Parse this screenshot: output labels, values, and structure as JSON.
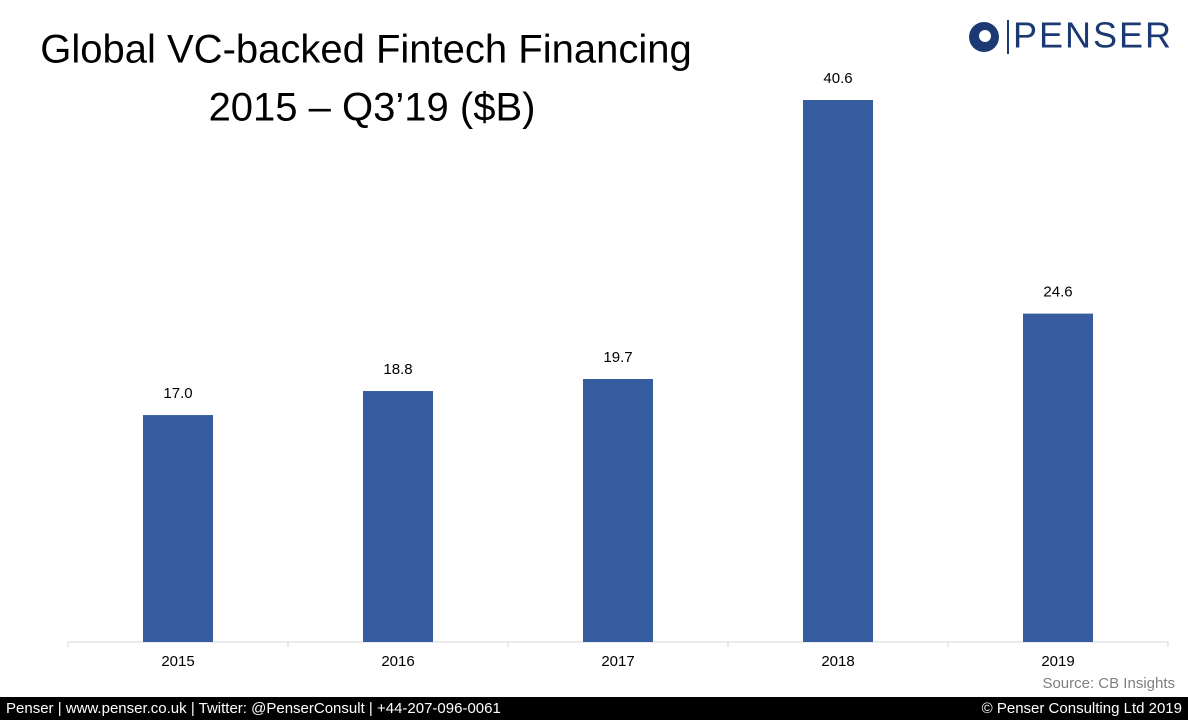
{
  "chart_data": {
    "type": "bar",
    "title": "Global VC-backed Fintech Financing",
    "subtitle": "2015 – Q3’19 ($B)",
    "categories": [
      "2015",
      "2016",
      "2017",
      "2018",
      "2019"
    ],
    "values": [
      17.0,
      18.8,
      19.7,
      40.6,
      24.6
    ],
    "value_labels": [
      "17.0",
      "18.8",
      "19.7",
      "40.6",
      "24.6"
    ],
    "color": "#375da1",
    "source": "Source: CB Insights"
  },
  "logo": "PENSER",
  "footer": {
    "left": "Penser | www.penser.co.uk | Twitter: @PenserConsult | +44-207-096-0061",
    "right": "© Penser Consulting Ltd 2019"
  }
}
